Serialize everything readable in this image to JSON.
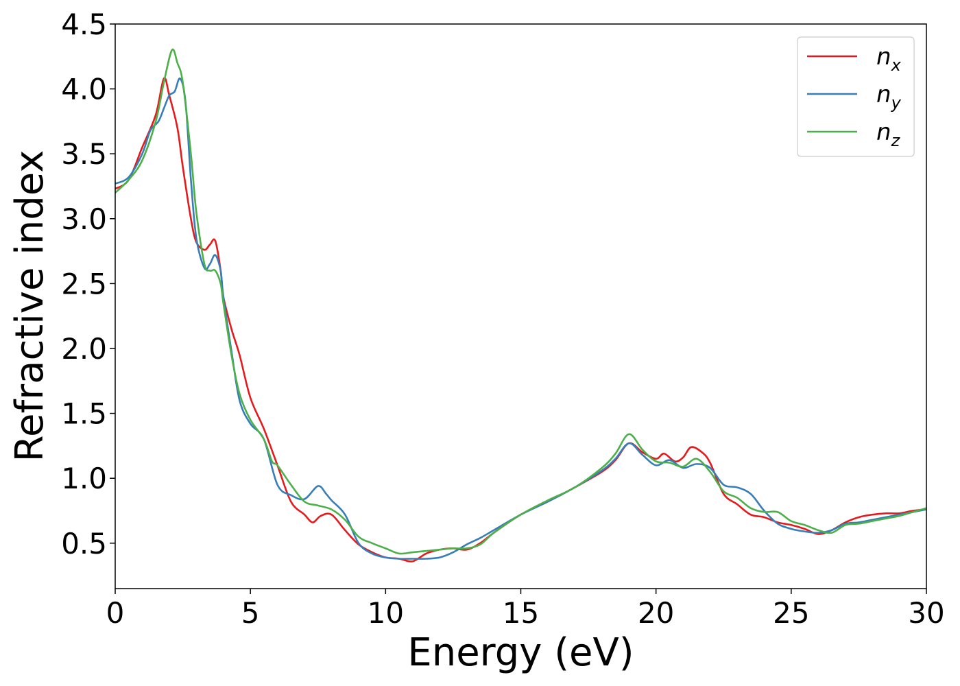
{
  "chart_data": {
    "type": "line",
    "title": "",
    "xlabel": "Energy (eV)",
    "ylabel": "Refractive index",
    "xlim": [
      0,
      30
    ],
    "ylim": [
      0.15,
      4.5
    ],
    "xticks": [
      0,
      5,
      10,
      15,
      20,
      25,
      30
    ],
    "yticks": [
      0.5,
      1.0,
      1.5,
      2.0,
      2.5,
      3.0,
      3.5,
      4.0,
      4.5
    ],
    "xtick_labels": [
      "0",
      "5",
      "10",
      "15",
      "20",
      "25",
      "30"
    ],
    "ytick_labels": [
      "0.5",
      "1.0",
      "1.5",
      "2.0",
      "2.5",
      "3.0",
      "3.5",
      "4.0",
      "4.5"
    ],
    "grid": false,
    "legend_position": "top-right",
    "series": [
      {
        "name": "n",
        "subscript": "x",
        "color": "#e41a1c",
        "x": [
          0,
          0.5,
          1,
          1.5,
          1.8,
          2.0,
          2.3,
          2.5,
          2.8,
          3.0,
          3.3,
          3.5,
          3.7,
          3.9,
          4.0,
          4.3,
          4.6,
          5.0,
          5.5,
          6.0,
          6.5,
          7.0,
          7.3,
          7.6,
          8.0,
          8.5,
          9.0,
          9.5,
          10.0,
          10.5,
          11.0,
          11.5,
          12.0,
          12.5,
          13.0,
          13.5,
          14.0,
          15.0,
          16.0,
          17.0,
          18.0,
          18.5,
          19.0,
          19.5,
          20.0,
          20.3,
          20.7,
          21.0,
          21.3,
          21.7,
          22.0,
          22.5,
          23.0,
          23.5,
          24.0,
          24.5,
          25.0,
          25.5,
          26.0,
          26.5,
          27.0,
          27.5,
          28.0,
          28.5,
          29.0,
          29.5,
          30.0
        ],
        "y": [
          3.23,
          3.3,
          3.55,
          3.8,
          4.08,
          3.95,
          3.7,
          3.4,
          3.0,
          2.82,
          2.76,
          2.8,
          2.83,
          2.6,
          2.4,
          2.15,
          1.95,
          1.62,
          1.38,
          1.1,
          0.82,
          0.72,
          0.66,
          0.71,
          0.72,
          0.6,
          0.49,
          0.43,
          0.39,
          0.38,
          0.36,
          0.42,
          0.45,
          0.46,
          0.45,
          0.5,
          0.58,
          0.72,
          0.82,
          0.93,
          1.05,
          1.14,
          1.27,
          1.2,
          1.15,
          1.19,
          1.13,
          1.16,
          1.24,
          1.2,
          1.12,
          0.88,
          0.8,
          0.72,
          0.7,
          0.66,
          0.64,
          0.61,
          0.57,
          0.6,
          0.66,
          0.7,
          0.72,
          0.73,
          0.73,
          0.75,
          0.76
        ]
      },
      {
        "name": "n",
        "subscript": "y",
        "color": "#377eb8",
        "x": [
          0,
          0.5,
          1,
          1.3,
          1.6,
          1.8,
          2.0,
          2.2,
          2.4,
          2.6,
          2.8,
          3.0,
          3.3,
          3.5,
          3.7,
          3.9,
          4.0,
          4.3,
          4.6,
          5.0,
          5.5,
          6.0,
          6.5,
          7.0,
          7.5,
          7.8,
          8.0,
          8.5,
          9.0,
          9.5,
          10.0,
          10.5,
          11.0,
          11.5,
          12.0,
          12.5,
          13.0,
          13.5,
          14.0,
          15.0,
          16.0,
          17.0,
          18.0,
          18.5,
          19.0,
          19.5,
          20.0,
          20.5,
          21.0,
          21.5,
          22.0,
          22.5,
          23.0,
          23.5,
          24.0,
          24.5,
          25.0,
          25.5,
          26.0,
          26.5,
          27.0,
          27.5,
          28.0,
          28.5,
          29.0,
          29.5,
          30.0
        ],
        "y": [
          3.27,
          3.32,
          3.5,
          3.68,
          3.75,
          3.85,
          3.95,
          3.98,
          4.08,
          3.9,
          3.3,
          2.85,
          2.62,
          2.65,
          2.72,
          2.6,
          2.4,
          1.98,
          1.6,
          1.42,
          1.3,
          0.95,
          0.87,
          0.84,
          0.94,
          0.88,
          0.83,
          0.72,
          0.5,
          0.42,
          0.39,
          0.38,
          0.38,
          0.38,
          0.39,
          0.43,
          0.49,
          0.54,
          0.6,
          0.72,
          0.82,
          0.93,
          1.06,
          1.15,
          1.27,
          1.18,
          1.1,
          1.14,
          1.08,
          1.11,
          1.08,
          0.95,
          0.93,
          0.88,
          0.75,
          0.65,
          0.61,
          0.59,
          0.58,
          0.6,
          0.65,
          0.66,
          0.68,
          0.7,
          0.72,
          0.74,
          0.76
        ]
      },
      {
        "name": "n",
        "subscript": "z",
        "color": "#4daf4a",
        "x": [
          0,
          0.5,
          1,
          1.5,
          1.8,
          2.1,
          2.3,
          2.5,
          2.8,
          3.0,
          3.3,
          3.5,
          3.7,
          3.9,
          4.0,
          4.3,
          4.6,
          5.0,
          5.5,
          5.8,
          6.0,
          6.5,
          7.0,
          7.5,
          8.0,
          8.5,
          9.0,
          9.5,
          10.0,
          10.5,
          11.0,
          11.5,
          12.0,
          12.5,
          13.0,
          13.5,
          14.0,
          15.0,
          16.0,
          17.0,
          18.0,
          18.5,
          19.0,
          19.5,
          20.0,
          20.5,
          21.0,
          21.5,
          22.0,
          22.5,
          23.0,
          23.5,
          24.0,
          24.5,
          25.0,
          25.5,
          26.0,
          26.5,
          27.0,
          27.5,
          28.0,
          28.5,
          29.0,
          29.5,
          30.0
        ],
        "y": [
          3.2,
          3.3,
          3.45,
          3.75,
          4.05,
          4.3,
          4.2,
          4.05,
          3.5,
          3.05,
          2.65,
          2.6,
          2.6,
          2.5,
          2.35,
          1.95,
          1.65,
          1.45,
          1.3,
          1.13,
          1.1,
          0.95,
          0.82,
          0.79,
          0.76,
          0.68,
          0.55,
          0.5,
          0.46,
          0.42,
          0.43,
          0.44,
          0.45,
          0.46,
          0.46,
          0.49,
          0.58,
          0.72,
          0.83,
          0.93,
          1.08,
          1.19,
          1.34,
          1.22,
          1.13,
          1.12,
          1.09,
          1.15,
          1.05,
          0.9,
          0.85,
          0.77,
          0.74,
          0.74,
          0.67,
          0.64,
          0.6,
          0.58,
          0.64,
          0.65,
          0.67,
          0.69,
          0.71,
          0.74,
          0.77
        ]
      }
    ]
  }
}
